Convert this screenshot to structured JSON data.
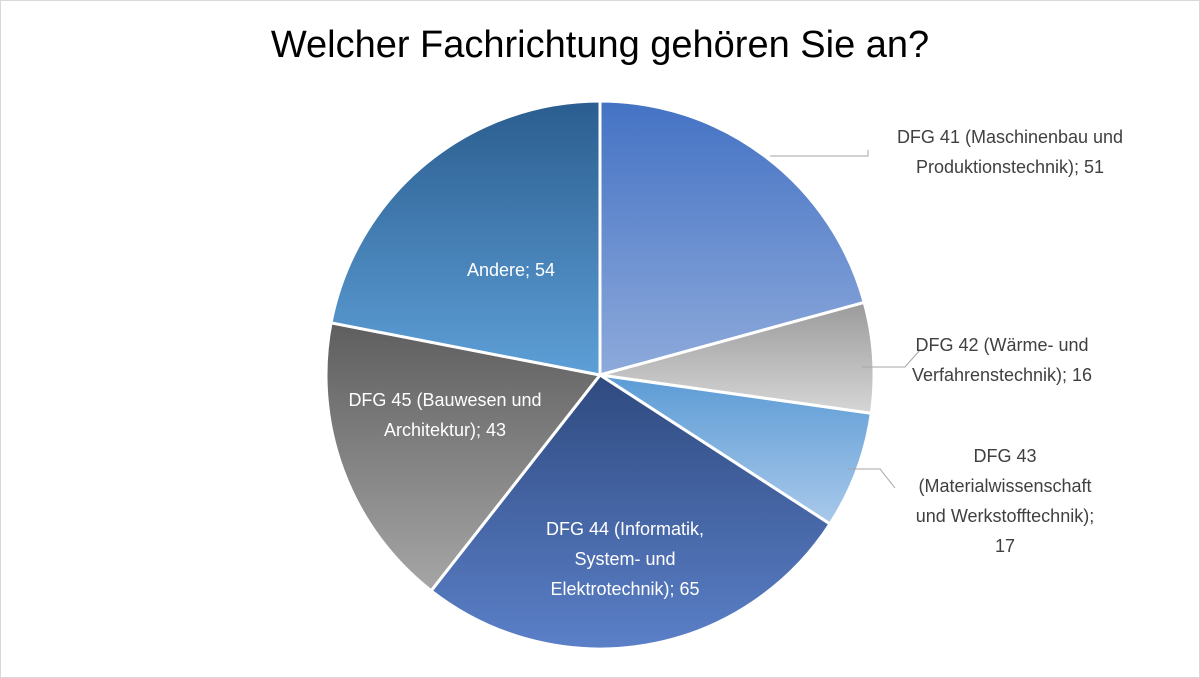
{
  "chart_data": {
    "type": "pie",
    "title": "Welcher Fachrichtung gehören Sie an?",
    "separator": "; ",
    "slices": [
      {
        "name": "DFG 41 (Maschinenbau und Produktionstechnik)",
        "value": 51,
        "label_lines": [
          "DFG 41 (Maschinenbau und",
          "Produktionstechnik); 51"
        ],
        "color_top": "#4472c4",
        "color_bottom": "#8eaadb",
        "label_color": "#404040",
        "label_position": "outside-right"
      },
      {
        "name": "DFG 42 (Wärme- und Verfahrenstechnik)",
        "value": 16,
        "label_lines": [
          "DFG 42 (Wärme- und",
          "Verfahrenstechnik); 16"
        ],
        "color_top": "#9b9b9b",
        "color_bottom": "#d6d6d6",
        "label_color": "#404040",
        "label_position": "outside-right"
      },
      {
        "name": "DFG 43 (Materialwissenschaft und Werkstofftechnik)",
        "value": 17,
        "label_lines": [
          "DFG 43",
          "(Materialwissenschaft",
          "und Werkstofftechnik);",
          "17"
        ],
        "color_top": "#5b9bd5",
        "color_bottom": "#a9c9ea",
        "label_color": "#404040",
        "label_position": "outside-right"
      },
      {
        "name": "DFG 44 (Informatik, System- und Elektrotechnik)",
        "value": 65,
        "label_lines": [
          "DFG 44 (Informatik,",
          "System- und",
          "Elektrotechnik); 65"
        ],
        "color_top": "#2f4a80",
        "color_bottom": "#5b80c8",
        "label_color": "#ffffff",
        "label_position": "inside"
      },
      {
        "name": "DFG 45 (Bauwesen und Architektur)",
        "value": 43,
        "label_lines": [
          "DFG 45 (Bauwesen und",
          "Architektur); 43"
        ],
        "color_top": "#5e5e5e",
        "color_bottom": "#a6a6a6",
        "label_color": "#ffffff",
        "label_position": "inside"
      },
      {
        "name": "Andere",
        "value": 54,
        "label_lines": [
          "Andere; 54"
        ],
        "color_top": "#2b5d8f",
        "color_bottom": "#5d9fd7",
        "label_color": "#ffffff",
        "label_position": "inside"
      }
    ],
    "legend": "none",
    "start_angle": "12 o'clock",
    "direction": "clockwise"
  }
}
